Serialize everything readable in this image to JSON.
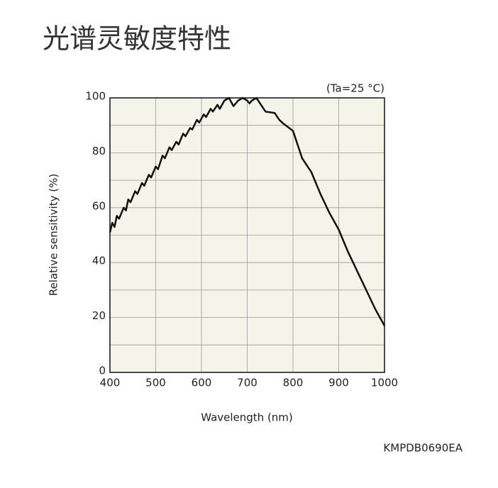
{
  "chart_data": {
    "type": "line",
    "title": "光谱灵敏度特性",
    "annotation": "(Ta=25 °C)",
    "code": "KMPDB0690EA",
    "x_label": "Wavelength (nm)",
    "y_label": "Relative sensitivity (%)",
    "xlim": [
      400,
      1000
    ],
    "xticks": [
      400,
      500,
      600,
      700,
      800,
      900,
      1000
    ],
    "ylim": [
      0,
      100
    ],
    "yticks": [
      0,
      20,
      40,
      60,
      80,
      100
    ],
    "minor_yticks": [
      10,
      30,
      50,
      70,
      90
    ],
    "grid": true,
    "background": "#f6f4e8",
    "series": [
      {
        "color": "#111111",
        "x": [
          400,
          405,
          410,
          415,
          420,
          430,
          435,
          440,
          445,
          455,
          460,
          470,
          475,
          485,
          490,
          500,
          505,
          515,
          520,
          530,
          535,
          545,
          550,
          560,
          565,
          575,
          580,
          590,
          595,
          605,
          610,
          620,
          625,
          635,
          640,
          650,
          660,
          670,
          680,
          690,
          700,
          705,
          710,
          720,
          730,
          740,
          760,
          770,
          780,
          800,
          810,
          820,
          840,
          860,
          880,
          900,
          920,
          940,
          960,
          980,
          1000
        ],
        "values": [
          51,
          54.5,
          53,
          57,
          56,
          60,
          59,
          63,
          62,
          66,
          65,
          69,
          68,
          72,
          71,
          75,
          74,
          79,
          78,
          82,
          81,
          84,
          83,
          87,
          86,
          89,
          88.5,
          92,
          91,
          94,
          93,
          96,
          95,
          97.5,
          96,
          99,
          100,
          97,
          99,
          100,
          99,
          98,
          99,
          100,
          97.5,
          95,
          94.5,
          92,
          90.5,
          88,
          83,
          78,
          73,
          65,
          58,
          52,
          44,
          37,
          30,
          23,
          17
        ]
      }
    ]
  }
}
